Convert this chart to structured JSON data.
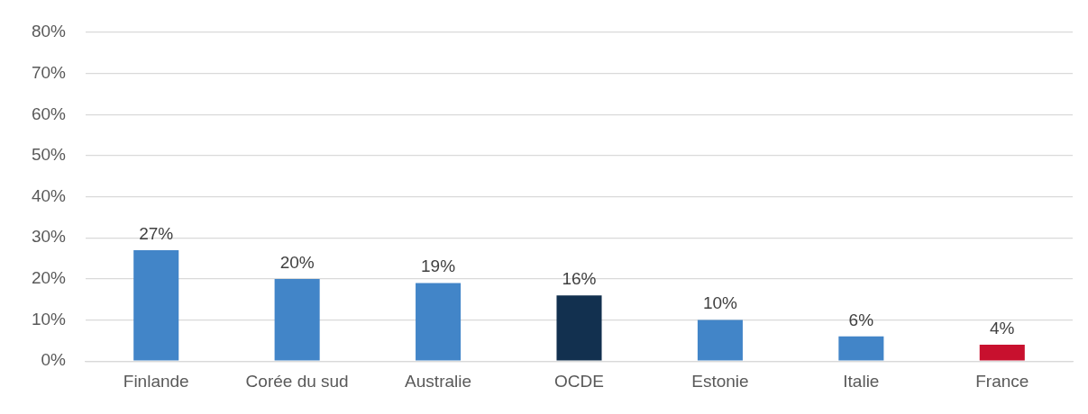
{
  "chart_data": {
    "type": "bar",
    "categories": [
      "Finlande",
      "Corée du sud",
      "Australie",
      "OCDE",
      "Estonie",
      "Italie",
      "France"
    ],
    "values": [
      27,
      20,
      19,
      16,
      10,
      6,
      4
    ],
    "colors": [
      "#4285c8",
      "#4285c8",
      "#4285c8",
      "#12304f",
      "#4285c8",
      "#4285c8",
      "#c8102e"
    ],
    "value_labels": [
      "27%",
      "20%",
      "19%",
      "16%",
      "10%",
      "6%",
      "4%"
    ],
    "ylim": [
      0,
      80
    ],
    "yticks": [
      {
        "value": 0,
        "label": "0%"
      },
      {
        "value": 10,
        "label": "10%"
      },
      {
        "value": 20,
        "label": "20%"
      },
      {
        "value": 30,
        "label": "30%"
      },
      {
        "value": 40,
        "label": "40%"
      },
      {
        "value": 50,
        "label": "50%"
      },
      {
        "value": 60,
        "label": "60%"
      },
      {
        "value": 70,
        "label": "70%"
      },
      {
        "value": 80,
        "label": "80%"
      }
    ],
    "grid": "y",
    "legend": false
  }
}
